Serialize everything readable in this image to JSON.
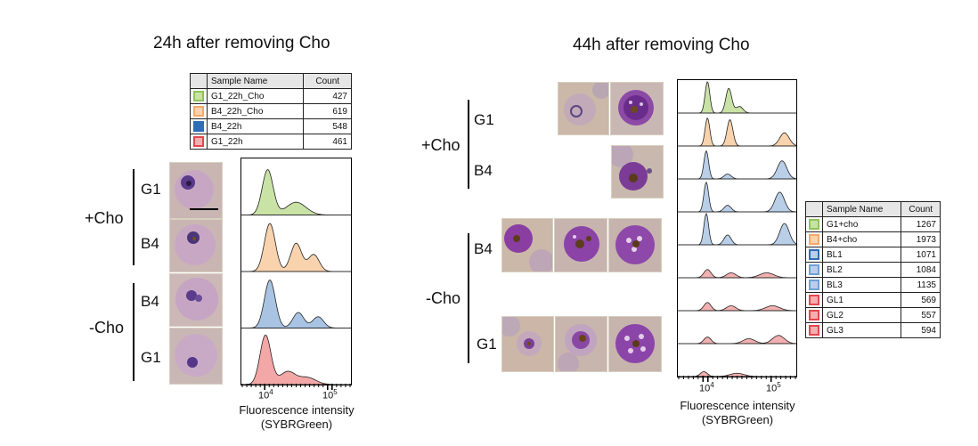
{
  "left_panel": {
    "title": "24h after removing Cho",
    "legend": {
      "headers": [
        "Sample Name",
        "Count"
      ],
      "rows": [
        {
          "name": "G1_22h_Cho",
          "count": "427",
          "color": "#8fc45a",
          "fill": "#c9e3a6"
        },
        {
          "name": "B4_22h_Cho",
          "count": "619",
          "color": "#f2a86a",
          "fill": "#f9d3ad"
        },
        {
          "name": "B4_22h",
          "count": "548",
          "color": "#2f6db5",
          "fill": "#2f6db5"
        },
        {
          "name": "G1_22h",
          "count": "461",
          "color": "#e2474e",
          "fill": "#f3b0b0"
        }
      ]
    },
    "groups": [
      {
        "label": "+Cho",
        "rows": [
          "G1",
          "B4"
        ]
      },
      {
        "label": "-Cho",
        "rows": [
          "B4",
          "G1"
        ]
      }
    ],
    "xaxis": {
      "ticks": [
        "10",
        "10"
      ],
      "tick_exponents": [
        "4",
        "5"
      ],
      "label_line1": "Fluorescence intensity",
      "label_line2": "(SYBRGreen)"
    }
  },
  "right_panel": {
    "title": "44h after removing Cho",
    "legend": {
      "headers": [
        "Sample Name",
        "Count"
      ],
      "rows": [
        {
          "name": "G1+cho",
          "count": "1267",
          "color": "#8fc45a",
          "fill": "#c9e3a6"
        },
        {
          "name": "B4+cho",
          "count": "1973",
          "color": "#f2a86a",
          "fill": "#f9d3ad"
        },
        {
          "name": "BL1",
          "count": "1071",
          "color": "#2f6db5",
          "fill": "#b9cfe8"
        },
        {
          "name": "BL2",
          "count": "1084",
          "color": "#6fa1d6",
          "fill": "#b9cfe8"
        },
        {
          "name": "BL3",
          "count": "1135",
          "color": "#6fa1d6",
          "fill": "#b9cfe8"
        },
        {
          "name": "GL1",
          "count": "569",
          "color": "#e2474e",
          "fill": "#f3b0b0"
        },
        {
          "name": "GL2",
          "count": "557",
          "color": "#e2474e",
          "fill": "#f3b0b0"
        },
        {
          "name": "GL3",
          "count": "594",
          "color": "#e2474e",
          "fill": "#f3b0b0"
        }
      ]
    },
    "groups": [
      {
        "label": "+Cho",
        "rows": [
          "G1",
          "B4"
        ]
      },
      {
        "label": "-Cho",
        "rows": [
          "B4",
          "G1"
        ]
      }
    ],
    "xaxis": {
      "ticks": [
        "10",
        "10"
      ],
      "tick_exponents": [
        "4",
        "5"
      ],
      "label_line1": "Fluorescence intensity",
      "label_line2": "(SYBRGreen)"
    }
  },
  "icons": {
    "cell": "infected-red-blood-cell-micrograph"
  }
}
